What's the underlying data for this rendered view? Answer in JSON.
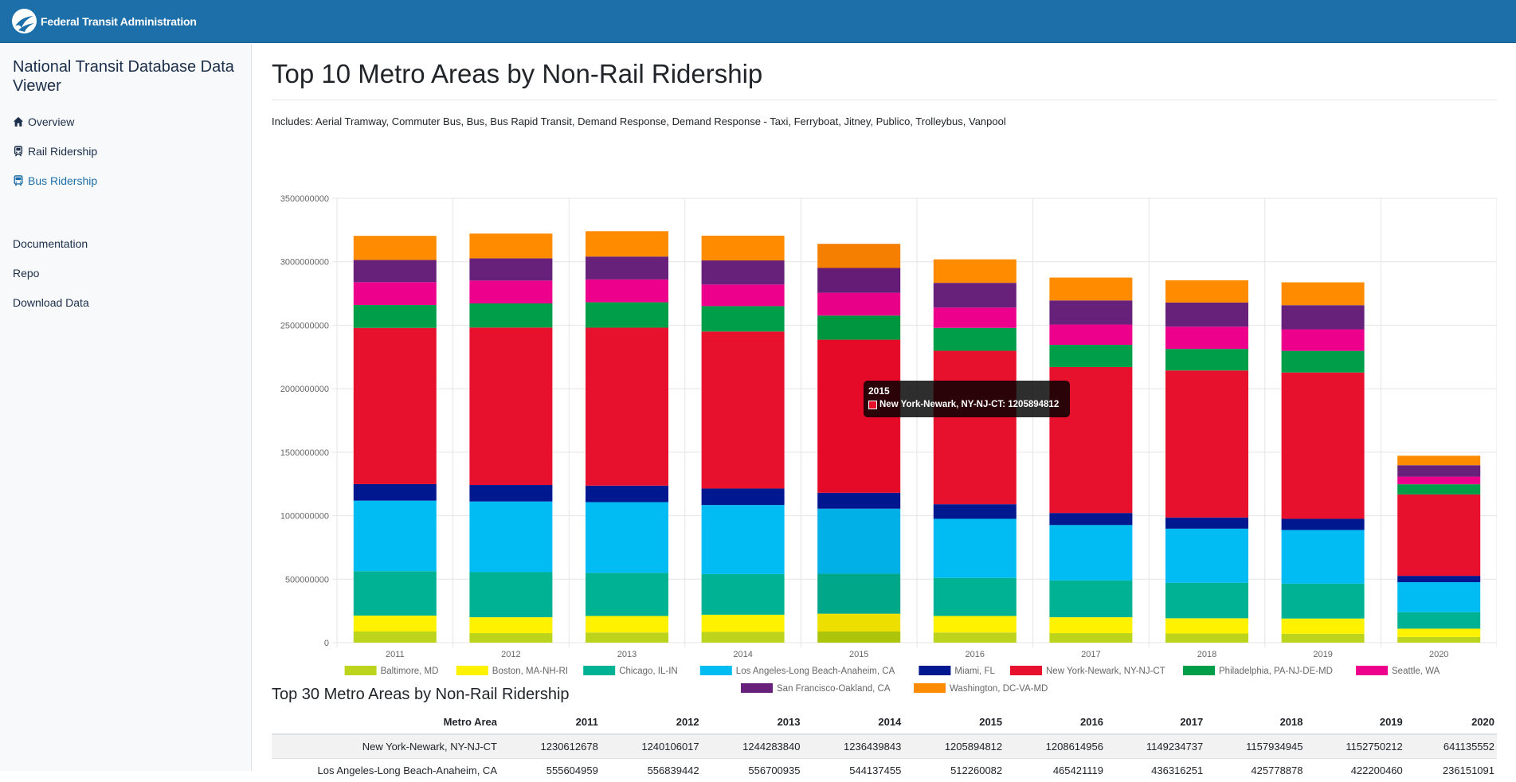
{
  "header": {
    "brand": "Federal Transit Administration"
  },
  "sidebar": {
    "title": "National Transit Database Data Viewer",
    "nav": [
      {
        "label": "Overview",
        "icon": "home-icon"
      },
      {
        "label": "Rail Ridership",
        "icon": "train-icon"
      },
      {
        "label": "Bus Ridership",
        "icon": "bus-icon",
        "active": true
      }
    ],
    "links": [
      {
        "label": "Documentation"
      },
      {
        "label": "Repo"
      },
      {
        "label": "Download Data"
      }
    ]
  },
  "page": {
    "title": "Top 10 Metro Areas by Non-Rail Ridership",
    "includes": "Includes: Aerial Tramway, Commuter Bus, Bus, Bus Rapid Transit, Demand Response, Demand Response - Taxi, Ferryboat, Jitney, Publico, Trolleybus, Vanpool"
  },
  "tooltip": {
    "title": "2015",
    "label": "New York-Newark, NY-NJ-CT: 1205894812",
    "color": "#e8112d"
  },
  "chart_data": {
    "type": "bar",
    "stacked": true,
    "categories": [
      "2011",
      "2012",
      "2013",
      "2014",
      "2015",
      "2016",
      "2017",
      "2018",
      "2019",
      "2020"
    ],
    "ylim": [
      0,
      3500000000
    ],
    "yticks": [
      0,
      500000000,
      1000000000,
      1500000000,
      2000000000,
      2500000000,
      3000000000,
      3500000000
    ],
    "grid": true,
    "legend": "bottom",
    "highlight_category": "2015",
    "series": [
      {
        "name": "Baltimore, MD",
        "color": "#bcd41c",
        "values": [
          88000000,
          75000000,
          80000000,
          85000000,
          88000000,
          80000000,
          75000000,
          72000000,
          70000000,
          45000000
        ]
      },
      {
        "name": "Boston, MA-NH-RI",
        "color": "#fff200",
        "values": [
          125000000,
          125000000,
          130000000,
          135000000,
          140000000,
          130000000,
          125000000,
          120000000,
          120000000,
          65000000
        ]
      },
      {
        "name": "Chicago, IL-IN",
        "color": "#00b294",
        "values": [
          350000000,
          355000000,
          340000000,
          320000000,
          315000000,
          300000000,
          290000000,
          280000000,
          275000000,
          130000000
        ]
      },
      {
        "name": "Los Angeles-Long Beach-Anaheim, CA",
        "color": "#00bcf2",
        "values": [
          555604959,
          556839442,
          556700935,
          544137455,
          512260082,
          465421119,
          436316251,
          425778878,
          422200460,
          236151091
        ]
      },
      {
        "name": "Miami, FL",
        "color": "#00188f",
        "values": [
          130000000,
          130000000,
          130000000,
          130000000,
          125000000,
          115000000,
          95000000,
          88000000,
          88000000,
          50000000
        ]
      },
      {
        "name": "New York-Newark, NY-NJ-CT",
        "color": "#e8112d",
        "values": [
          1230612678,
          1240106017,
          1244283840,
          1236439843,
          1205894812,
          1208614956,
          1149234737,
          1157934945,
          1152750212,
          641135552
        ]
      },
      {
        "name": "Philadelphia, PA-NJ-DE-MD",
        "color": "#009e49",
        "values": [
          180000000,
          190000000,
          200000000,
          200000000,
          190000000,
          180000000,
          175000000,
          170000000,
          170000000,
          80000000
        ]
      },
      {
        "name": "Seattle, WA",
        "color": "#ec008c",
        "values": [
          180000000,
          180000000,
          180000000,
          170000000,
          180000000,
          160000000,
          160000000,
          175000000,
          170000000,
          60000000
        ]
      },
      {
        "name": "San Francisco-Oakland, CA",
        "color": "#68217a",
        "values": [
          175000000,
          175000000,
          180000000,
          190000000,
          195000000,
          195000000,
          190000000,
          190000000,
          190000000,
          90000000
        ]
      },
      {
        "name": "Washington, DC-VA-MD",
        "color": "#ff8c00",
        "values": [
          190000000,
          195000000,
          200000000,
          195000000,
          190000000,
          185000000,
          180000000,
          175000000,
          180000000,
          75000000
        ]
      }
    ]
  },
  "table": {
    "title": "Top 30 Metro Areas by Non-Rail Ridership",
    "columns": [
      "Metro Area",
      "2011",
      "2012",
      "2013",
      "2014",
      "2015",
      "2016",
      "2017",
      "2018",
      "2019",
      "2020"
    ],
    "rows": [
      [
        "New York-Newark, NY-NJ-CT",
        "1230612678",
        "1240106017",
        "1244283840",
        "1236439843",
        "1205894812",
        "1208614956",
        "1149234737",
        "1157934945",
        "1152750212",
        "641135552"
      ],
      [
        "Los Angeles-Long Beach-Anaheim, CA",
        "555604959",
        "556839442",
        "556700935",
        "544137455",
        "512260082",
        "465421119",
        "436316251",
        "425778878",
        "422200460",
        "236151091"
      ]
    ]
  }
}
